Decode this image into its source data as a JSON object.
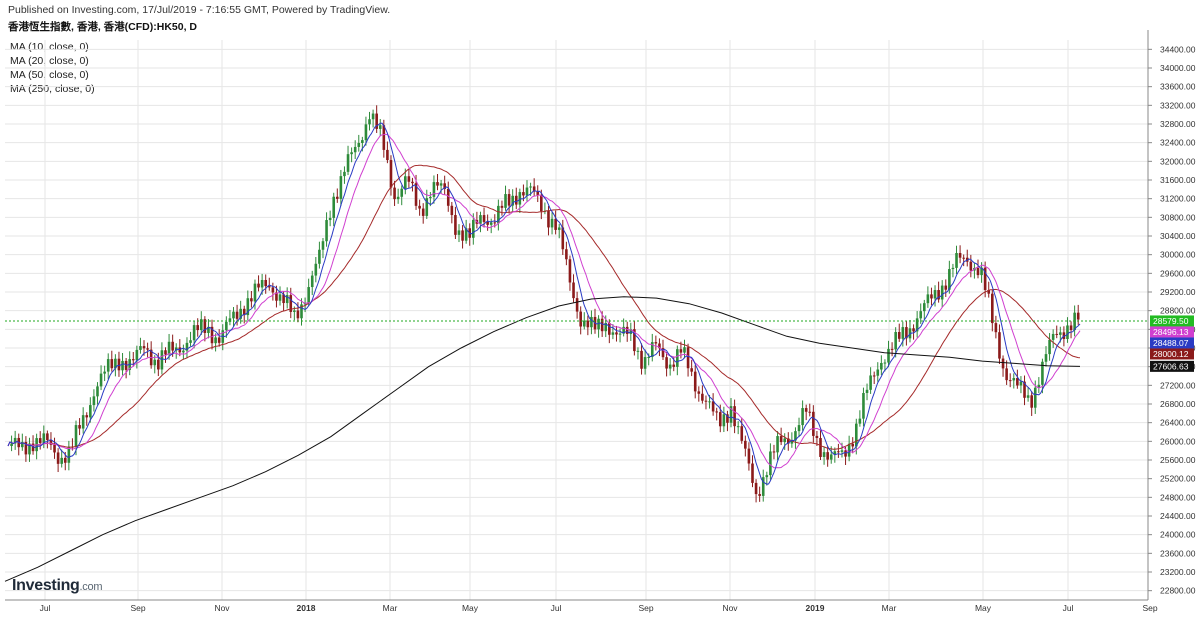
{
  "header": {
    "published": "Published on Investing.com, 17/Jul/2019 - 7:16:55 GMT, Powered by TradingView.",
    "symbol": "香港恆生指數, 香港, 香港(CFD):HK50, D"
  },
  "legend": {
    "items": [
      "MA (10, close, 0)",
      "MA (20, close, 0)",
      "MA (50, close, 0)",
      "MA (250, close, 0)"
    ]
  },
  "logo": {
    "main": "Investing",
    "suffix": ".com"
  },
  "colors": {
    "up": "#2e8b3a",
    "down": "#8b1a1a",
    "ma10": "#2a3bc4",
    "ma20": "#d040d0",
    "ma50": "#a52a2a",
    "ma250": "#111111",
    "last_line": "#22aa22",
    "grid": "#e6e6e6"
  },
  "chart_data": {
    "type": "candlestick",
    "ylim": [
      22600,
      34600
    ],
    "y_ticks": [
      22800,
      23200,
      23600,
      24000,
      24400,
      24800,
      25200,
      25600,
      26000,
      26400,
      26800,
      27200,
      27600,
      28000,
      28400,
      28800,
      29200,
      29600,
      30000,
      30400,
      30800,
      31200,
      31600,
      32000,
      32400,
      32800,
      33200,
      33600,
      34000,
      34400
    ],
    "x_labels": [
      {
        "label": "Jul",
        "bold": false
      },
      {
        "label": "Sep",
        "bold": false
      },
      {
        "label": "Nov",
        "bold": false
      },
      {
        "label": "2018",
        "bold": true
      },
      {
        "label": "Mar",
        "bold": false
      },
      {
        "label": "May",
        "bold": false
      },
      {
        "label": "Jul",
        "bold": false
      },
      {
        "label": "Sep",
        "bold": false
      },
      {
        "label": "Nov",
        "bold": false
      },
      {
        "label": "2019",
        "bold": true
      },
      {
        "label": "Mar",
        "bold": false
      },
      {
        "label": "May",
        "bold": false
      },
      {
        "label": "Jul",
        "bold": false
      },
      {
        "label": "Sep",
        "bold": false
      }
    ],
    "closes": [
      25900,
      25820,
      26050,
      25950,
      25700,
      25780,
      26420,
      27200,
      27500,
      27800,
      27650,
      28050,
      27700,
      27900,
      28100,
      28300,
      28450,
      28200,
      28600,
      29000,
      29200,
      29400,
      29050,
      28600,
      29300,
      29900,
      31200,
      31800,
      32300,
      33100,
      32400,
      31300,
      31600,
      30900,
      31500,
      31300,
      30600,
      30300,
      30900,
      30700,
      31100,
      31400,
      31300,
      31000,
      30600,
      29500,
      28600,
      28350,
      28600,
      28200,
      28300,
      27700,
      28000,
      27700,
      27900,
      27300,
      26900,
      26300,
      26800,
      25800,
      24900,
      25500,
      26000,
      26200,
      26600,
      26000,
      25600,
      25700,
      26300,
      27100,
      27800,
      28000,
      28350,
      28700,
      29000,
      29400,
      29800,
      29900,
      29700,
      28500,
      27500,
      27100,
      26900,
      27600,
      28300,
      28500,
      28580
    ],
    "series": [
      {
        "name": "MA (10, close, 0)",
        "last": "28496.13"
      },
      {
        "name": "MA (20, close, 0)",
        "last": "28488.07"
      },
      {
        "name": "MA (50, close, 0)",
        "last": "28000.12"
      },
      {
        "name": "MA (250, close, 0)",
        "last": "27606.63"
      }
    ],
    "ma250": [
      23000,
      23300,
      23650,
      24000,
      24300,
      24550,
      24800,
      25050,
      25350,
      25700,
      26100,
      26600,
      27100,
      27600,
      28000,
      28350,
      28650,
      28900,
      29050,
      29100,
      29070,
      28950,
      28750,
      28500,
      28250,
      28100,
      28000,
      27900,
      27850,
      27800,
      27720,
      27670,
      27620,
      27606
    ],
    "last_price": "28579.50",
    "last_value": 28579.5,
    "price_tags": [
      {
        "label": "28579.50",
        "value": 28579.5,
        "color": "#22bb22"
      },
      {
        "label": "28496.13",
        "value": 28496.13,
        "color": "#d040d0"
      },
      {
        "label": "28488.07",
        "value": 28488.07,
        "color": "#2a3bc4"
      },
      {
        "label": "28000.12",
        "value": 28000.12,
        "color": "#8b1a1a"
      },
      {
        "label": "27606.63",
        "value": 27606.63,
        "color": "#111111"
      }
    ]
  }
}
